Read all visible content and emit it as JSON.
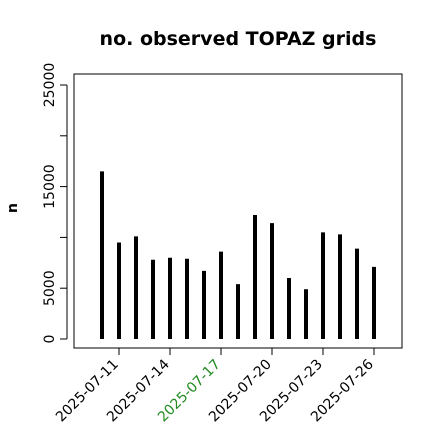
{
  "chart_data": {
    "type": "bar",
    "title": "no. observed TOPAZ grids",
    "xlabel": "",
    "ylabel": "n",
    "ylim": [
      0,
      26000
    ],
    "yticks": [
      0,
      5000,
      15000,
      25000
    ],
    "grid": false,
    "categories": [
      "2025-07-10",
      "2025-07-11",
      "2025-07-12",
      "2025-07-13",
      "2025-07-14",
      "2025-07-15",
      "2025-07-16",
      "2025-07-17",
      "2025-07-18",
      "2025-07-19",
      "2025-07-20",
      "2025-07-21",
      "2025-07-22",
      "2025-07-23",
      "2025-07-24",
      "2025-07-25",
      "2025-07-26"
    ],
    "values": [
      16500,
      9500,
      10100,
      7800,
      8000,
      7900,
      6700,
      8600,
      5400,
      12200,
      11400,
      6000,
      4900,
      10500,
      10300,
      8900,
      7100
    ],
    "xticks": [
      {
        "label": "2025-07-11",
        "color": "#000000"
      },
      {
        "label": "2025-07-14",
        "color": "#000000"
      },
      {
        "label": "2025-07-17",
        "color": "#228B22"
      },
      {
        "label": "2025-07-20",
        "color": "#000000"
      },
      {
        "label": "2025-07-23",
        "color": "#000000"
      },
      {
        "label": "2025-07-26",
        "color": "#000000"
      }
    ],
    "bar_color": "#000000"
  }
}
